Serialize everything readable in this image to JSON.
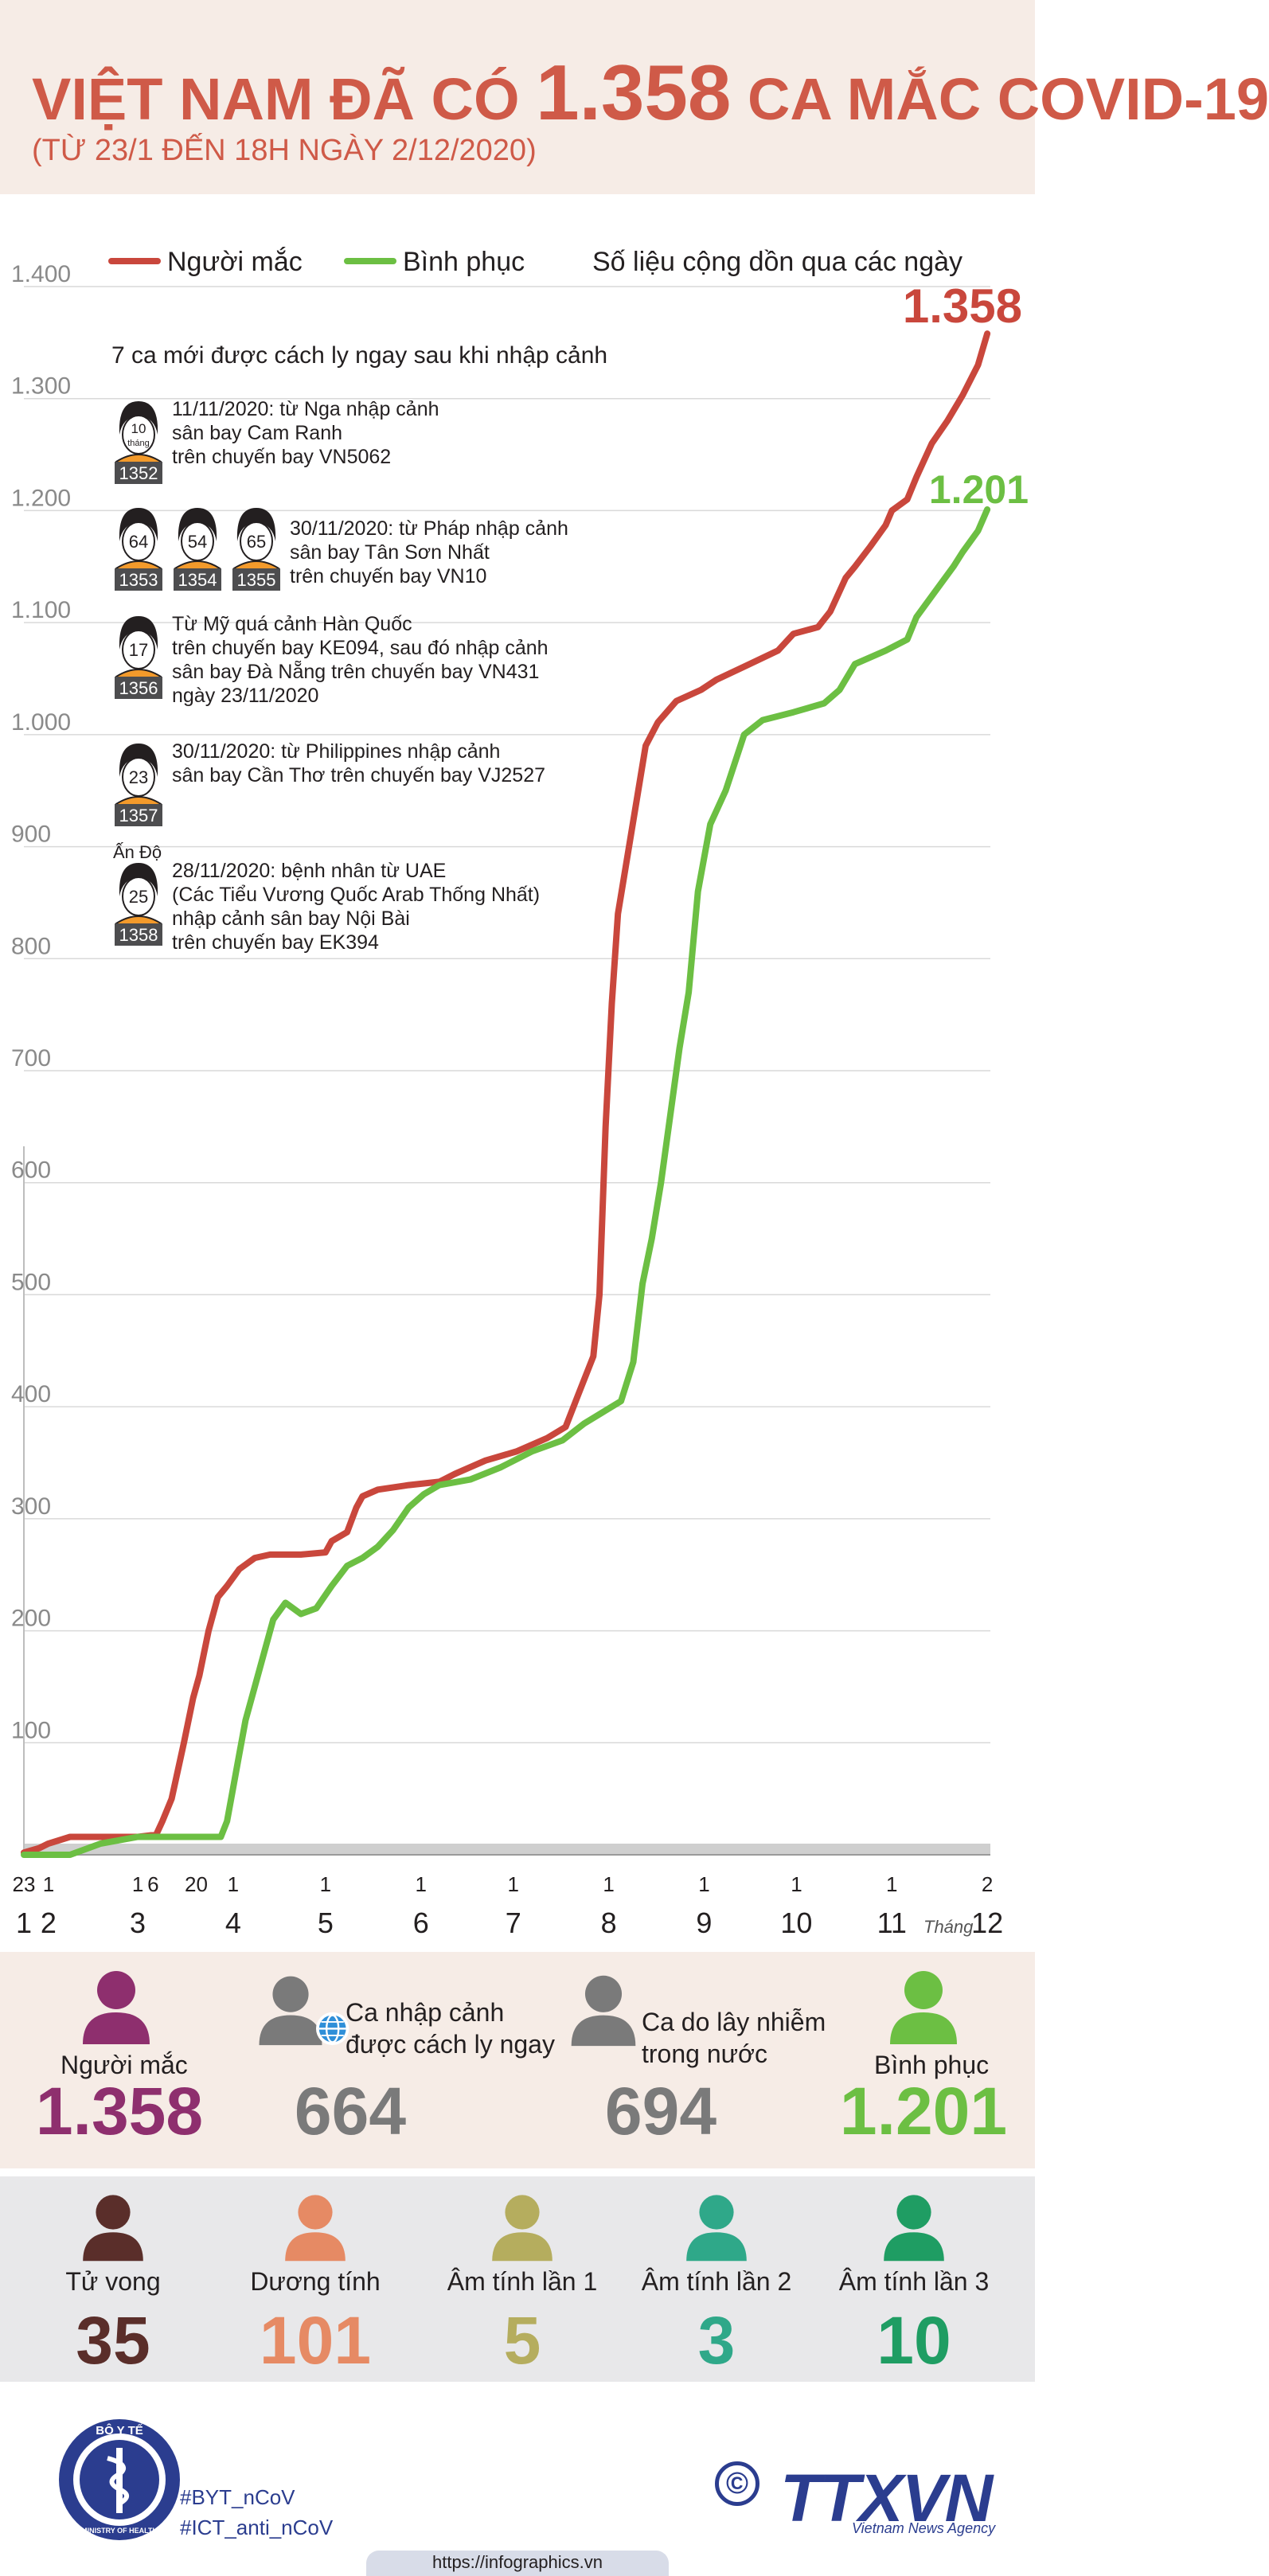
{
  "title": {
    "main_prefix": "VIỆT NAM ĐÃ CÓ",
    "main_number": "1.358",
    "main_suffix": "CA MẮC COVID-19",
    "subtitle": "(TỪ 23/1 ĐẾN 18H NGÀY 2/12/2020)"
  },
  "colors": {
    "infected": "#c9473c",
    "recovered": "#6cbf43",
    "purple": "#8e2f6e",
    "gray": "#7a7a7a",
    "death": "#5a2e2a",
    "positive": "#e68a64",
    "neg1": "#b5ad5e",
    "neg2": "#2fa889",
    "neg3": "#1f9d63",
    "navy": "#2b3d8f"
  },
  "chart_data": {
    "type": "line",
    "title": "",
    "legend": [
      {
        "name": "Người mắc",
        "color": "#c9473c"
      },
      {
        "name": "Bình phục",
        "color": "#6cbf43"
      }
    ],
    "legend_note": "Số liệu cộng dồn qua các ngày",
    "ylim": [
      0,
      1400
    ],
    "yticks": [
      "1.400",
      "1.300",
      "1.200",
      "1.100",
      "1.000",
      "900",
      "800",
      "700",
      "600",
      "500",
      "400",
      "300",
      "200",
      "100"
    ],
    "ytick_values": [
      1400,
      1300,
      1200,
      1100,
      1000,
      900,
      800,
      700,
      600,
      500,
      400,
      300,
      200,
      100
    ],
    "xlim": [
      0,
      314
    ],
    "day_ticks": [
      {
        "label": "23",
        "x": 0
      },
      {
        "label": "1",
        "x": 8
      },
      {
        "label": "1",
        "x": 37
      },
      {
        "label": "6",
        "x": 42
      },
      {
        "label": "20",
        "x": 56
      },
      {
        "label": "1",
        "x": 68
      },
      {
        "label": "1",
        "x": 98
      },
      {
        "label": "1",
        "x": 129
      },
      {
        "label": "1",
        "x": 159
      },
      {
        "label": "1",
        "x": 190
      },
      {
        "label": "1",
        "x": 221
      },
      {
        "label": "1",
        "x": 251
      },
      {
        "label": "1",
        "x": 282
      },
      {
        "label": "2",
        "x": 313
      }
    ],
    "month_ticks": [
      {
        "label": "1",
        "x": 0
      },
      {
        "label": "2",
        "x": 8
      },
      {
        "label": "3",
        "x": 37
      },
      {
        "label": "4",
        "x": 68
      },
      {
        "label": "5",
        "x": 98
      },
      {
        "label": "6",
        "x": 129
      },
      {
        "label": "7",
        "x": 159
      },
      {
        "label": "8",
        "x": 190
      },
      {
        "label": "9",
        "x": 221
      },
      {
        "label": "10",
        "x": 251
      },
      {
        "label": "11",
        "x": 282
      },
      {
        "label": "12",
        "x": 313
      }
    ],
    "month_word": "Tháng",
    "series": [
      {
        "name": "Người mắc",
        "end_label": "1.358",
        "points": [
          [
            0,
            2
          ],
          [
            5,
            6
          ],
          [
            8,
            10
          ],
          [
            15,
            16
          ],
          [
            25,
            16
          ],
          [
            37,
            16
          ],
          [
            43,
            18
          ],
          [
            45,
            30
          ],
          [
            48,
            50
          ],
          [
            50,
            75
          ],
          [
            52,
            100
          ],
          [
            55,
            140
          ],
          [
            57,
            160
          ],
          [
            60,
            200
          ],
          [
            63,
            230
          ],
          [
            66,
            240
          ],
          [
            70,
            255
          ],
          [
            75,
            265
          ],
          [
            80,
            268
          ],
          [
            90,
            268
          ],
          [
            98,
            270
          ],
          [
            100,
            280
          ],
          [
            105,
            288
          ],
          [
            108,
            310
          ],
          [
            110,
            320
          ],
          [
            115,
            326
          ],
          [
            125,
            330
          ],
          [
            135,
            333
          ],
          [
            140,
            340
          ],
          [
            150,
            352
          ],
          [
            160,
            360
          ],
          [
            170,
            372
          ],
          [
            176,
            382
          ],
          [
            180,
            410
          ],
          [
            185,
            445
          ],
          [
            187,
            500
          ],
          [
            189,
            650
          ],
          [
            191,
            760
          ],
          [
            193,
            840
          ],
          [
            196,
            890
          ],
          [
            199,
            940
          ],
          [
            202,
            990
          ],
          [
            206,
            1011
          ],
          [
            212,
            1030
          ],
          [
            220,
            1040
          ],
          [
            225,
            1049
          ],
          [
            235,
            1062
          ],
          [
            245,
            1075
          ],
          [
            250,
            1090
          ],
          [
            258,
            1096
          ],
          [
            262,
            1110
          ],
          [
            267,
            1140
          ],
          [
            270,
            1150
          ],
          [
            275,
            1168
          ],
          [
            280,
            1187
          ],
          [
            282,
            1200
          ],
          [
            287,
            1210
          ],
          [
            290,
            1230
          ],
          [
            295,
            1260
          ],
          [
            300,
            1280
          ],
          [
            305,
            1303
          ],
          [
            310,
            1330
          ],
          [
            313,
            1358
          ]
        ]
      },
      {
        "name": "Bình phục",
        "end_label": "1.201",
        "points": [
          [
            0,
            0
          ],
          [
            15,
            0
          ],
          [
            25,
            10
          ],
          [
            37,
            16
          ],
          [
            45,
            16
          ],
          [
            55,
            16
          ],
          [
            64,
            16
          ],
          [
            66,
            30
          ],
          [
            68,
            60
          ],
          [
            70,
            90
          ],
          [
            72,
            120
          ],
          [
            75,
            150
          ],
          [
            78,
            180
          ],
          [
            81,
            210
          ],
          [
            85,
            225
          ],
          [
            90,
            215
          ],
          [
            95,
            220
          ],
          [
            100,
            240
          ],
          [
            105,
            258
          ],
          [
            110,
            265
          ],
          [
            115,
            275
          ],
          [
            120,
            290
          ],
          [
            125,
            310
          ],
          [
            130,
            322
          ],
          [
            135,
            330
          ],
          [
            145,
            335
          ],
          [
            155,
            346
          ],
          [
            165,
            360
          ],
          [
            175,
            370
          ],
          [
            182,
            385
          ],
          [
            188,
            395
          ],
          [
            194,
            405
          ],
          [
            198,
            440
          ],
          [
            201,
            510
          ],
          [
            204,
            550
          ],
          [
            207,
            600
          ],
          [
            210,
            660
          ],
          [
            213,
            720
          ],
          [
            216,
            770
          ],
          [
            219,
            860
          ],
          [
            223,
            920
          ],
          [
            228,
            950
          ],
          [
            234,
            1000
          ],
          [
            240,
            1013
          ],
          [
            250,
            1020
          ],
          [
            260,
            1028
          ],
          [
            265,
            1040
          ],
          [
            270,
            1063
          ],
          [
            280,
            1075
          ],
          [
            287,
            1085
          ],
          [
            290,
            1105
          ],
          [
            298,
            1135
          ],
          [
            302,
            1150
          ],
          [
            305,
            1163
          ],
          [
            310,
            1182
          ],
          [
            313,
            1201
          ]
        ]
      }
    ],
    "annotations": {
      "heading": "7 ca mới được cách ly ngay sau khi nhập cảnh",
      "cases": [
        {
          "ids": [
            "1352"
          ],
          "ages": [
            "10\ntháng"
          ],
          "lines": [
            "11/11/2020: từ Nga nhập cảnh",
            "sân bay Cam Ranh",
            "trên chuyến bay VN5062"
          ]
        },
        {
          "ids": [
            "1353",
            "1354",
            "1355"
          ],
          "ages": [
            "64",
            "54",
            "65"
          ],
          "lines": [
            "30/11/2020: từ Pháp nhập cảnh",
            "sân bay Tân Sơn Nhất",
            "trên chuyến bay VN10"
          ]
        },
        {
          "ids": [
            "1356"
          ],
          "ages": [
            "17"
          ],
          "lines": [
            "Từ Mỹ quá cảnh Hàn Quốc",
            "trên chuyến bay KE094, sau đó nhập cảnh",
            "sân bay Đà Nẵng trên chuyến bay VN431",
            "ngày 23/11/2020"
          ]
        },
        {
          "ids": [
            "1357"
          ],
          "ages": [
            "23"
          ],
          "lines": [
            "30/11/2020: từ Philippines nhập cảnh",
            "sân bay Cần Thơ trên chuyến bay VJ2527"
          ]
        },
        {
          "ids": [
            "1358"
          ],
          "ages": [
            "25"
          ],
          "nationality": "Ấn Độ",
          "lines": [
            "28/11/2020: bệnh nhân từ UAE",
            "(Các Tiểu Vương Quốc Arab Thống Nhất)",
            "nhập cảnh sân bay Nội Bài",
            "trên chuyến bay EK394"
          ]
        }
      ]
    }
  },
  "stats_main": [
    {
      "label": "Người mắc",
      "value": "1.358",
      "color": "#8e2f6e"
    },
    {
      "label": "Ca nhập cảnh\nđược cách ly ngay",
      "value": "664",
      "color": "#7a7a7a"
    },
    {
      "label": "Ca do lây nhiễm\ntrong nước",
      "value": "694",
      "color": "#7a7a7a"
    },
    {
      "label": "Bình phục",
      "value": "1.201",
      "color": "#6cbf43"
    }
  ],
  "stats_detail": [
    {
      "label": "Tử vong",
      "value": "35",
      "color": "#5a2e2a"
    },
    {
      "label": "Dương tính",
      "value": "101",
      "color": "#e68a64"
    },
    {
      "label": "Âm tính lần 1",
      "value": "5",
      "color": "#b5ad5e"
    },
    {
      "label": "Âm tính lần 2",
      "value": "3",
      "color": "#2fa889"
    },
    {
      "label": "Âm tính lần 3",
      "value": "10",
      "color": "#1f9d63"
    }
  ],
  "footer": {
    "ministry_top": "BỘ Y TẾ",
    "ministry_bottom": "MINISTRY OF HEALTH",
    "tags": [
      "#BYT_nCoV",
      "#ICT_anti_nCoV"
    ],
    "copyright_symbol": "©",
    "agency_logo": "TTXVN",
    "agency_sub": "Vietnam News Agency",
    "url": "https://infographics.vn"
  }
}
